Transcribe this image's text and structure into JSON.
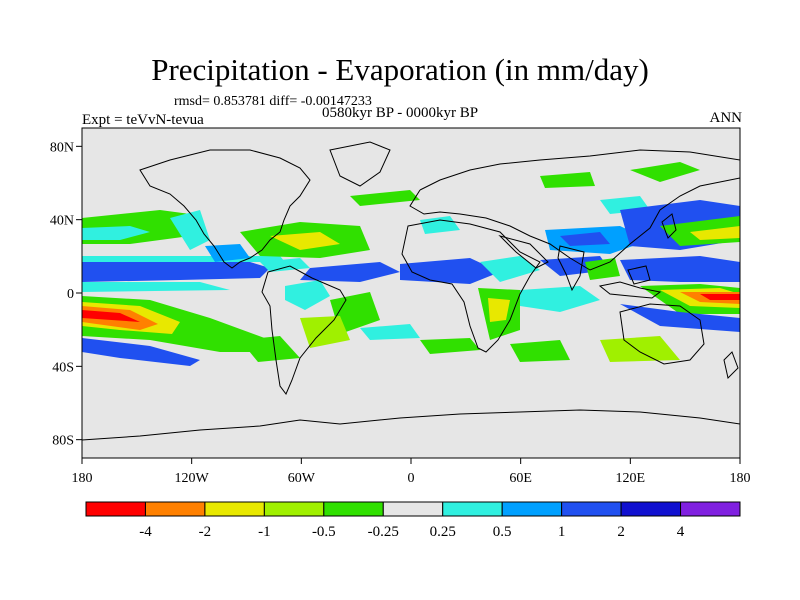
{
  "title": "Precipitation - Evaporation (in mm/day)",
  "stats": "rmsd= 0.853781 diff= -0.00147233",
  "experiment": "Expt = teVvN-tevua",
  "period": "0580kyr BP - 0000kyr BP",
  "season": "ANN",
  "lat_ticks": [
    {
      "label": "80N",
      "value": 80
    },
    {
      "label": "40N",
      "value": 40
    },
    {
      "label": "0",
      "value": 0
    },
    {
      "label": "40S",
      "value": -40
    },
    {
      "label": "80S",
      "value": -80
    }
  ],
  "lon_ticks": [
    {
      "label": "180",
      "value": -180
    },
    {
      "label": "120W",
      "value": -120
    },
    {
      "label": "60W",
      "value": -60
    },
    {
      "label": "0",
      "value": 0
    },
    {
      "label": "60E",
      "value": 60
    },
    {
      "label": "120E",
      "value": 120
    },
    {
      "label": "180",
      "value": 180
    }
  ],
  "colorbar": {
    "colors": [
      "#ff0000",
      "#ff8000",
      "#e8e800",
      "#a0f000",
      "#30e000",
      "#e6e6e6",
      "#30f0e0",
      "#00a0ff",
      "#2050f0",
      "#1010d0",
      "#8020e0"
    ],
    "labels": [
      "-4",
      "-2",
      "-1",
      "-0.5",
      "-0.25",
      "0.25",
      "0.5",
      "1",
      "2",
      "4"
    ]
  },
  "colors": {
    "background": "#e6e6e6",
    "coastline": "#000000"
  }
}
